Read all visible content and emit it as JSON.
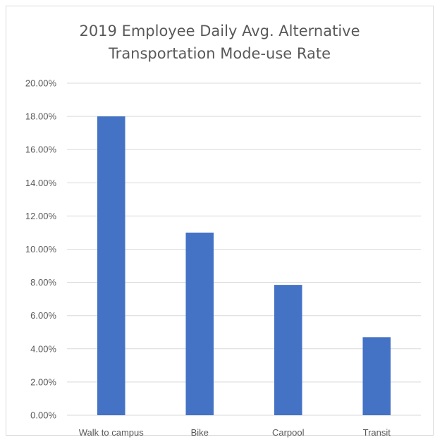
{
  "chart_data": {
    "type": "bar",
    "title": "2019 Employee Daily Avg. Alternative Transportation Mode-use Rate",
    "title_lines": [
      "2019 Employee Daily Avg. Alternative",
      "Transportation Mode-use Rate"
    ],
    "xlabel": "",
    "ylabel": "",
    "categories": [
      "Walk to campus",
      "Bike",
      "Carpool",
      "Transit"
    ],
    "values": [
      0.18,
      0.11,
      0.0785,
      0.047
    ],
    "ylim": [
      0,
      0.2
    ],
    "yticks": [
      0,
      0.02,
      0.04,
      0.06,
      0.08,
      0.1,
      0.12,
      0.14,
      0.16,
      0.18,
      0.2
    ],
    "ytick_labels": [
      "0.00%",
      "2.00%",
      "4.00%",
      "6.00%",
      "8.00%",
      "10.00%",
      "12.00%",
      "14.00%",
      "16.00%",
      "18.00%",
      "20.00%"
    ],
    "grid": true,
    "legend": "none",
    "colors": {
      "bar": "#4472c4",
      "grid": "#d9d9d9",
      "text": "#595959"
    }
  }
}
